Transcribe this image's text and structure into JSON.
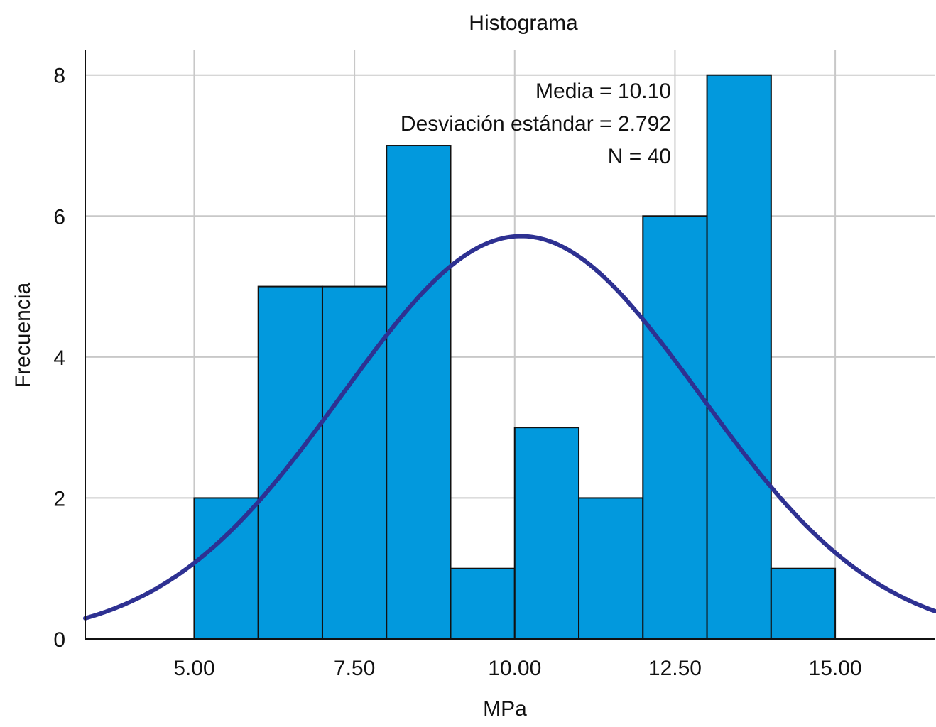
{
  "chart_data": {
    "type": "bar",
    "title": "Histograma",
    "xlabel": "MPa",
    "ylabel": "Frecuencia",
    "xlim": [
      3.3,
      16.55
    ],
    "ylim": [
      0,
      8.36
    ],
    "x_ticks": [
      5.0,
      7.5,
      10.0,
      12.5,
      15.0
    ],
    "x_tick_labels": [
      "5.00",
      "7.50",
      "10.00",
      "12.50",
      "15.00"
    ],
    "y_ticks": [
      0,
      2,
      4,
      6,
      8
    ],
    "y_tick_labels": [
      "0",
      "2",
      "4",
      "6",
      "8"
    ],
    "bins": [
      {
        "start": 5.0,
        "end": 6.0,
        "count": 2
      },
      {
        "start": 6.0,
        "end": 7.0,
        "count": 5
      },
      {
        "start": 7.0,
        "end": 8.0,
        "count": 5
      },
      {
        "start": 8.0,
        "end": 9.0,
        "count": 7
      },
      {
        "start": 9.0,
        "end": 10.0,
        "count": 1
      },
      {
        "start": 10.0,
        "end": 11.0,
        "count": 3
      },
      {
        "start": 11.0,
        "end": 12.0,
        "count": 2
      },
      {
        "start": 12.0,
        "end": 13.0,
        "count": 6
      },
      {
        "start": 13.0,
        "end": 14.0,
        "count": 8
      },
      {
        "start": 14.0,
        "end": 15.0,
        "count": 1
      }
    ],
    "normal_curve": {
      "mean": 10.1,
      "std": 2.792,
      "n": 40,
      "bin_width": 1.0
    },
    "stats_text": [
      "Media = 10.10",
      "Desviación estándar = 2.792",
      "N = 40"
    ],
    "grid": true,
    "colors": {
      "bar": "#0299dd",
      "curve": "#2e3192"
    }
  }
}
